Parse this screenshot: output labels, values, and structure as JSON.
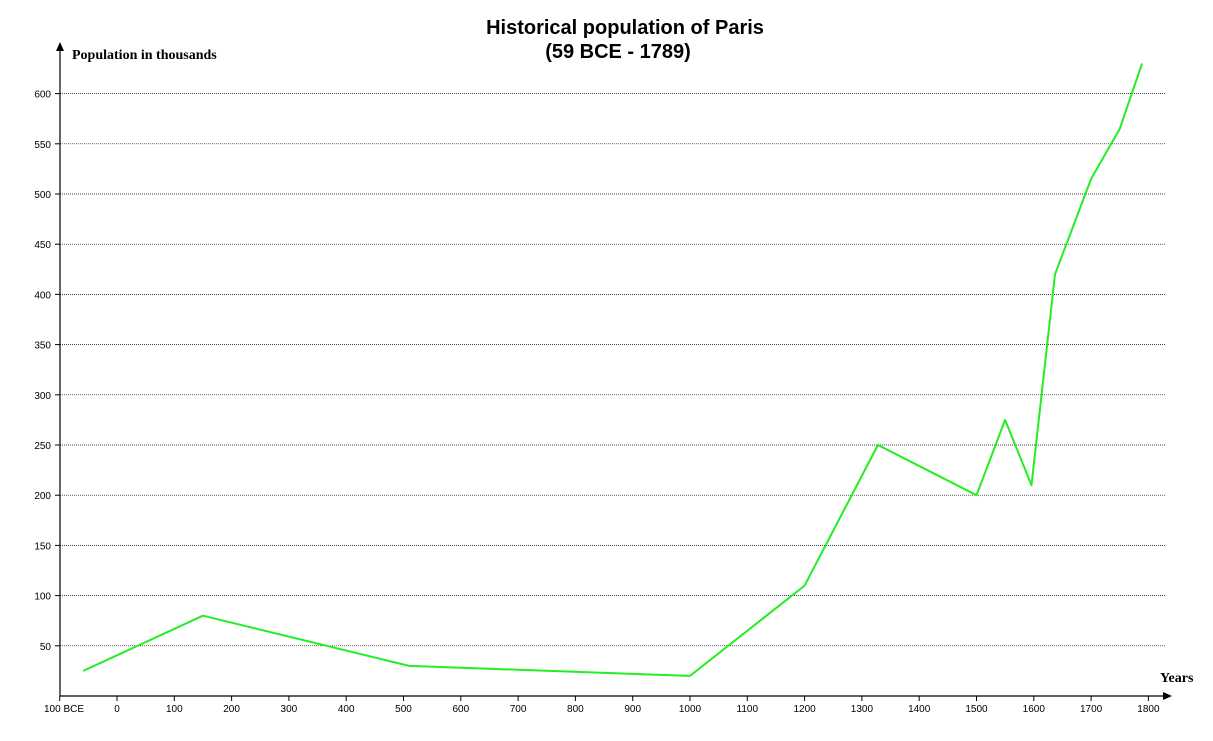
{
  "chart_data": {
    "type": "line",
    "title": "Historical population of Paris",
    "subtitle": "(59 BCE - 1789)",
    "ylabel": "Population in thousands",
    "xlabel": "Years",
    "xlim": [
      -100,
      1800
    ],
    "ylim": [
      0,
      630
    ],
    "yticks": [
      50,
      100,
      150,
      200,
      250,
      300,
      350,
      400,
      450,
      500,
      550,
      600
    ],
    "xticks": [
      {
        "value": -100,
        "label": "100 BCE"
      },
      {
        "value": 0,
        "label": "0"
      },
      {
        "value": 100,
        "label": "100"
      },
      {
        "value": 200,
        "label": "200"
      },
      {
        "value": 300,
        "label": "300"
      },
      {
        "value": 400,
        "label": "400"
      },
      {
        "value": 500,
        "label": "500"
      },
      {
        "value": 600,
        "label": "600"
      },
      {
        "value": 700,
        "label": "700"
      },
      {
        "value": 800,
        "label": "800"
      },
      {
        "value": 900,
        "label": "900"
      },
      {
        "value": 1000,
        "label": "1000"
      },
      {
        "value": 1100,
        "label": "1100"
      },
      {
        "value": 1200,
        "label": "1200"
      },
      {
        "value": 1300,
        "label": "1300"
      },
      {
        "value": 1400,
        "label": "1400"
      },
      {
        "value": 1500,
        "label": "1500"
      },
      {
        "value": 1600,
        "label": "1600"
      },
      {
        "value": 1700,
        "label": "1700"
      },
      {
        "value": 1800,
        "label": "1800"
      }
    ],
    "grid": true,
    "series": [
      {
        "color": "#22ee22",
        "x": [
          -59,
          150,
          510,
          1000,
          1200,
          1328,
          1500,
          1550,
          1596,
          1637,
          1700,
          1750,
          1789
        ],
        "y": [
          25,
          80,
          30,
          20,
          110,
          250,
          200,
          275,
          210,
          420,
          515,
          565,
          630
        ]
      }
    ]
  }
}
